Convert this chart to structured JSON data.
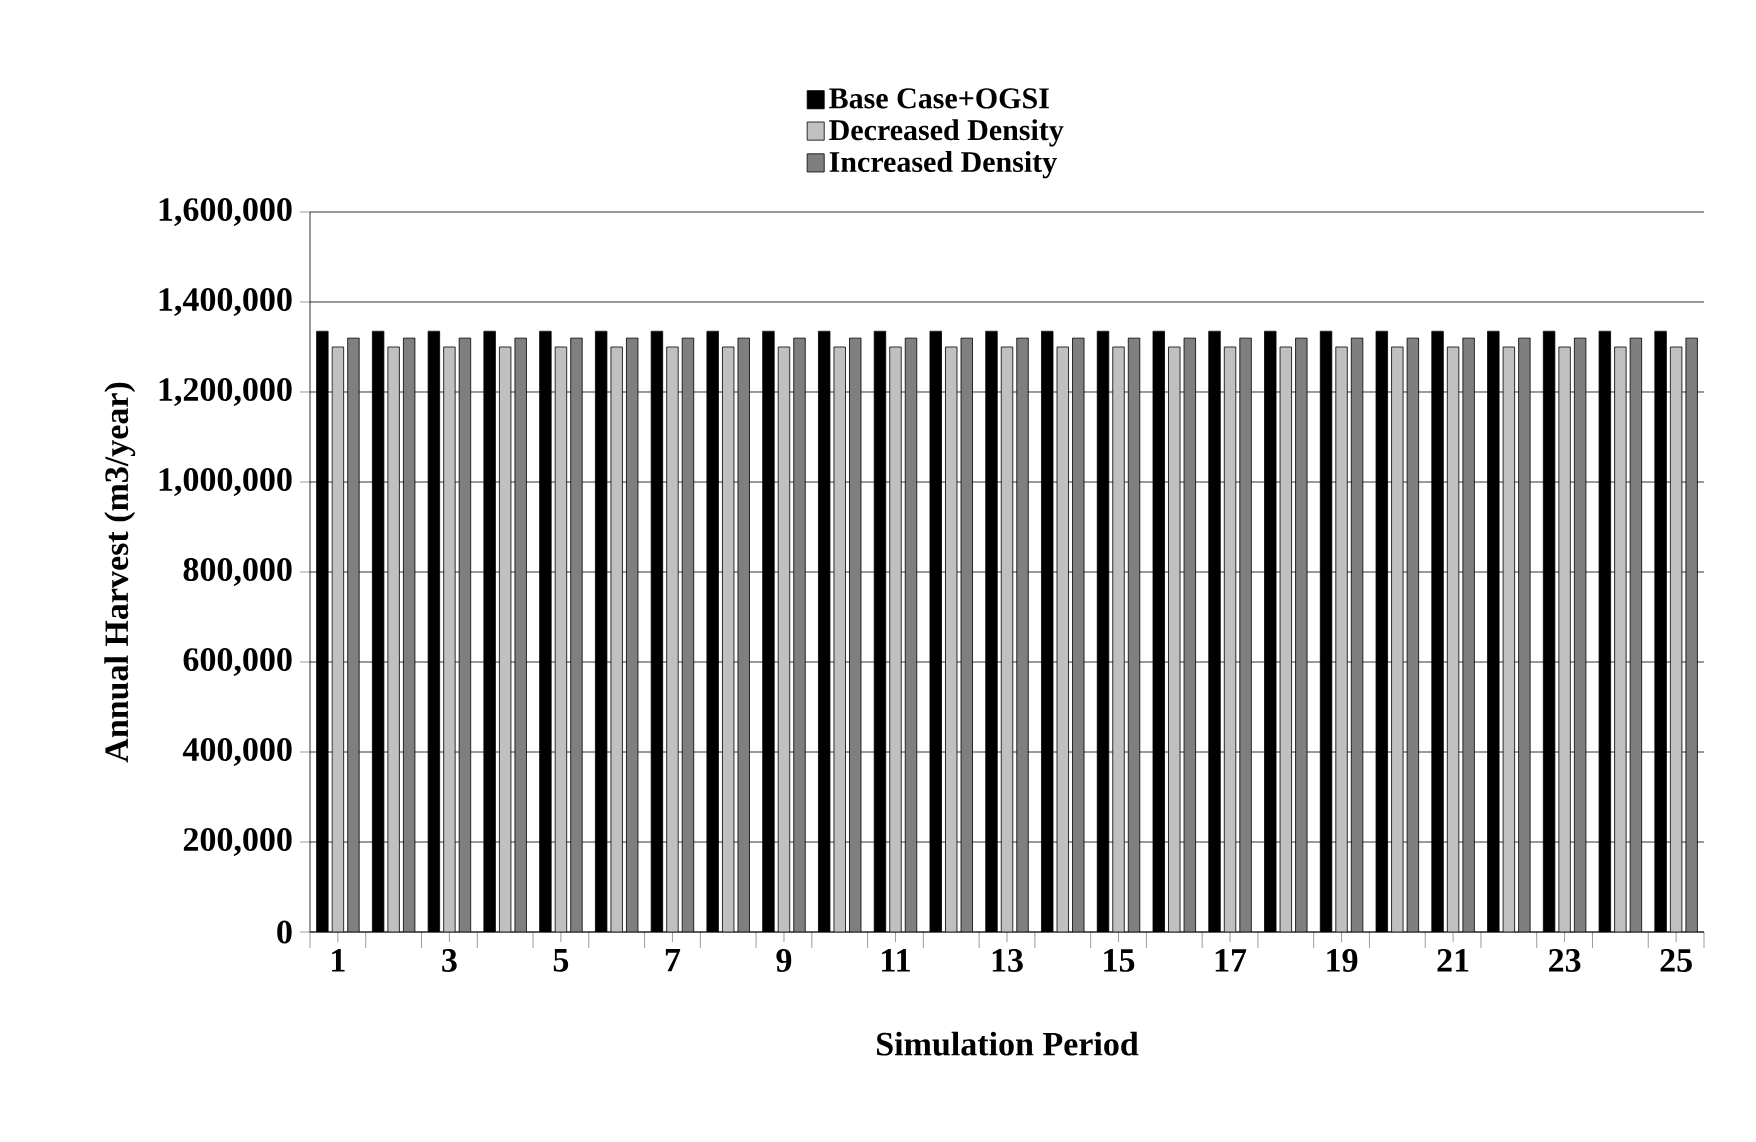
{
  "chart_data": {
    "type": "bar",
    "xlabel": "Simulation Period",
    "ylabel": "Annual Harvest (m3/year)",
    "categories": [
      "1",
      null,
      "3",
      null,
      "5",
      null,
      "7",
      null,
      "9",
      null,
      "11",
      null,
      "13",
      null,
      "15",
      null,
      "17",
      null,
      "19",
      null,
      "21",
      null,
      "23",
      null,
      "25"
    ],
    "series": [
      {
        "name": "Base Case+OGSI",
        "color": "#000000",
        "values": [
          1335000,
          1335000,
          1335000,
          1335000,
          1335000,
          1335000,
          1335000,
          1335000,
          1335000,
          1335000,
          1335000,
          1335000,
          1335000,
          1335000,
          1335000,
          1335000,
          1335000,
          1335000,
          1335000,
          1335000,
          1335000,
          1335000,
          1335000,
          1335000,
          1335000
        ]
      },
      {
        "name": "Decreased Density",
        "color": "#c0c0c0",
        "values": [
          1300000,
          1300000,
          1300000,
          1300000,
          1300000,
          1300000,
          1300000,
          1300000,
          1300000,
          1300000,
          1300000,
          1300000,
          1300000,
          1300000,
          1300000,
          1300000,
          1300000,
          1300000,
          1300000,
          1300000,
          1300000,
          1300000,
          1300000,
          1300000,
          1300000
        ]
      },
      {
        "name": "Increased Density",
        "color": "#7f7f7f",
        "values": [
          1320000,
          1320000,
          1320000,
          1320000,
          1320000,
          1320000,
          1320000,
          1320000,
          1320000,
          1320000,
          1320000,
          1320000,
          1320000,
          1320000,
          1320000,
          1320000,
          1320000,
          1320000,
          1320000,
          1320000,
          1320000,
          1320000,
          1320000,
          1320000,
          1320000
        ]
      }
    ],
    "ylim": [
      0,
      1600000
    ],
    "yticks": [
      {
        "value": 0,
        "label": "0"
      },
      {
        "value": 200000,
        "label": "200,000"
      },
      {
        "value": 400000,
        "label": "400,000"
      },
      {
        "value": 600000,
        "label": "600,000"
      },
      {
        "value": 800000,
        "label": "800,000"
      },
      {
        "value": 1000000,
        "label": "1,000,000"
      },
      {
        "value": 1200000,
        "label": "1,200,000"
      },
      {
        "value": 1400000,
        "label": "1,400,000"
      },
      {
        "value": 1600000,
        "label": "1,600,000"
      }
    ],
    "grid": "y",
    "legend": "top"
  }
}
